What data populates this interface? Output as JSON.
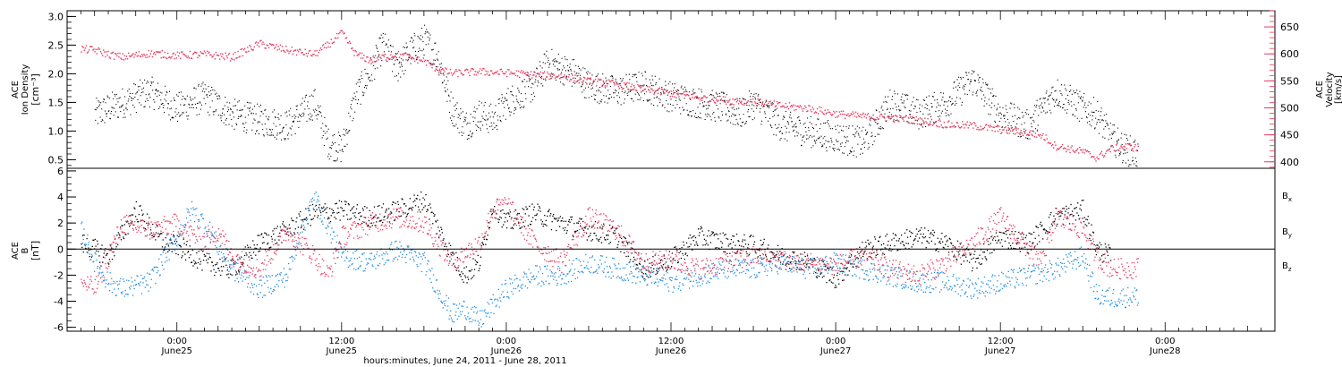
{
  "chart_data": [
    {
      "type": "scatter",
      "panel": "top",
      "ylabel_left": [
        "ACE",
        "Ion Density",
        "[cm⁻³]"
      ],
      "ylabel_right": [
        "ACE",
        "Velocity",
        "[km/s]"
      ],
      "ylim_left": [
        0.35,
        3.1
      ],
      "ylim_right": [
        388,
        680
      ],
      "yticks_left": [
        "0.5",
        "1.0",
        "1.5",
        "2.0",
        "2.5",
        "3.0"
      ],
      "yticks_right": [
        "400",
        "450",
        "500",
        "550",
        "600",
        "650"
      ],
      "series": [
        {
          "axis": "left",
          "color": "#000000",
          "points": [
            [
              -6,
              1.3
            ],
            [
              -4,
              1.5
            ],
            [
              -2,
              1.7
            ],
            [
              0,
              1.4
            ],
            [
              2,
              1.6
            ],
            [
              4,
              1.3
            ],
            [
              6,
              1.2
            ],
            [
              8,
              1.1
            ],
            [
              10,
              1.5
            ],
            [
              11,
              0.8
            ],
            [
              12,
              0.7
            ],
            [
              13,
              1.6
            ],
            [
              14,
              2.0
            ],
            [
              15,
              2.5
            ],
            [
              16,
              2.1
            ],
            [
              17,
              2.4
            ],
            [
              18,
              2.6
            ],
            [
              19,
              2.3
            ],
            [
              20,
              1.4
            ],
            [
              21,
              1.1
            ],
            [
              22,
              1.3
            ],
            [
              23,
              1.2
            ],
            [
              24,
              1.5
            ],
            [
              26,
              1.8
            ],
            [
              27,
              2.2
            ],
            [
              28,
              2.1
            ],
            [
              29,
              2.0
            ],
            [
              30,
              1.8
            ],
            [
              32,
              1.7
            ],
            [
              34,
              1.8
            ],
            [
              36,
              1.6
            ],
            [
              38,
              1.5
            ],
            [
              40,
              1.4
            ],
            [
              41,
              1.3
            ],
            [
              42,
              1.5
            ],
            [
              44,
              1.1
            ],
            [
              46,
              1.0
            ],
            [
              48,
              0.9
            ],
            [
              50,
              0.8
            ],
            [
              52,
              1.5
            ],
            [
              54,
              1.3
            ],
            [
              56,
              1.5
            ],
            [
              58,
              1.9
            ],
            [
              60,
              1.3
            ],
            [
              62,
              1.1
            ],
            [
              64,
              1.7
            ],
            [
              66,
              1.4
            ],
            [
              67,
              1.3
            ],
            [
              68,
              0.9
            ],
            [
              69,
              0.7
            ],
            [
              70,
              0.6
            ]
          ]
        },
        {
          "axis": "right",
          "color": "#e8385e",
          "points": [
            [
              -7,
              610
            ],
            [
              -6,
              608
            ],
            [
              -5,
              600
            ],
            [
              -4,
              595
            ],
            [
              -2,
              602
            ],
            [
              0,
              598
            ],
            [
              2,
              600
            ],
            [
              4,
              595
            ],
            [
              6,
              620
            ],
            [
              8,
              608
            ],
            [
              10,
              600
            ],
            [
              11,
              618
            ],
            [
              12,
              640
            ],
            [
              13,
              600
            ],
            [
              14,
              590
            ],
            [
              16,
              600
            ],
            [
              18,
              588
            ],
            [
              19,
              572
            ],
            [
              20,
              565
            ],
            [
              22,
              568
            ],
            [
              24,
              566
            ],
            [
              26,
              562
            ],
            [
              28,
              560
            ],
            [
              30,
              550
            ],
            [
              32,
              545
            ],
            [
              34,
              535
            ],
            [
              36,
              528
            ],
            [
              38,
              520
            ],
            [
              40,
              515
            ],
            [
              42,
              512
            ],
            [
              44,
              505
            ],
            [
              46,
              500
            ],
            [
              48,
              490
            ],
            [
              50,
              485
            ],
            [
              52,
              482
            ],
            [
              54,
              478
            ],
            [
              56,
              470
            ],
            [
              58,
              468
            ],
            [
              60,
              460
            ],
            [
              62,
              455
            ],
            [
              63,
              450
            ],
            [
              64,
              430
            ],
            [
              66,
              420
            ],
            [
              67,
              408
            ],
            [
              68,
              425
            ],
            [
              69,
              430
            ],
            [
              70,
              426
            ]
          ]
        }
      ]
    },
    {
      "type": "scatter",
      "panel": "bottom",
      "ylabel": [
        "ACE",
        "B",
        "[nT]"
      ],
      "ylim": [
        -6.3,
        6.2
      ],
      "yticks": [
        "-6",
        "-4",
        "-2",
        "0",
        "2",
        "4",
        "6"
      ],
      "legend": [
        {
          "name": "Bx",
          "color": "#000000"
        },
        {
          "name": "By",
          "color": "#1f8ce0"
        },
        {
          "name": "Bz",
          "color": "#e8385e"
        }
      ],
      "series": [
        {
          "name": "Bx",
          "color": "#000000",
          "points": [
            [
              -7,
              0.5
            ],
            [
              -5,
              -0.5
            ],
            [
              -3,
              3.0
            ],
            [
              -1,
              0.5
            ],
            [
              0,
              0.3
            ],
            [
              2,
              -1.0
            ],
            [
              4,
              -1.5
            ],
            [
              6,
              0.5
            ],
            [
              8,
              1.5
            ],
            [
              10,
              2.8
            ],
            [
              12,
              3.0
            ],
            [
              14,
              2.5
            ],
            [
              16,
              3.0
            ],
            [
              18,
              3.8
            ],
            [
              20,
              -0.5
            ],
            [
              21,
              -2.0
            ],
            [
              22,
              -1.0
            ],
            [
              23,
              3.5
            ],
            [
              24,
              2.0
            ],
            [
              26,
              2.8
            ],
            [
              28,
              2.0
            ],
            [
              30,
              1.5
            ],
            [
              32,
              1.0
            ],
            [
              34,
              -1.5
            ],
            [
              36,
              -0.8
            ],
            [
              38,
              1.0
            ],
            [
              40,
              0.5
            ],
            [
              42,
              0.3
            ],
            [
              44,
              -0.5
            ],
            [
              46,
              -1.0
            ],
            [
              48,
              -2.2
            ],
            [
              50,
              0.0
            ],
            [
              52,
              0.5
            ],
            [
              54,
              1.0
            ],
            [
              56,
              0.5
            ],
            [
              58,
              -1.0
            ],
            [
              60,
              1.0
            ],
            [
              62,
              0.5
            ],
            [
              64,
              2.5
            ],
            [
              66,
              3.0
            ],
            [
              67,
              0.0
            ],
            [
              68,
              -0.5
            ]
          ]
        },
        {
          "name": "By",
          "color": "#1f8ce0",
          "points": [
            [
              -7,
              1.5
            ],
            [
              -6,
              -1.0
            ],
            [
              -5,
              -2.5
            ],
            [
              -4,
              -3.0
            ],
            [
              -2,
              -2.5
            ],
            [
              0,
              1.0
            ],
            [
              1,
              3.0
            ],
            [
              2,
              2.0
            ],
            [
              4,
              -1.5
            ],
            [
              6,
              -3.0
            ],
            [
              8,
              -2.0
            ],
            [
              9,
              1.5
            ],
            [
              10,
              4.0
            ],
            [
              12,
              -0.5
            ],
            [
              14,
              -1.0
            ],
            [
              16,
              0.0
            ],
            [
              18,
              -1.0
            ],
            [
              19,
              -3.0
            ],
            [
              20,
              -5.0
            ],
            [
              21,
              -4.5
            ],
            [
              22,
              -5.5
            ],
            [
              24,
              -3.0
            ],
            [
              26,
              -2.0
            ],
            [
              28,
              -2.0
            ],
            [
              30,
              -1.0
            ],
            [
              32,
              -1.5
            ],
            [
              34,
              -2.0
            ],
            [
              36,
              -2.5
            ],
            [
              38,
              -2.0
            ],
            [
              40,
              -1.5
            ],
            [
              42,
              -1.5
            ],
            [
              44,
              -1.0
            ],
            [
              46,
              -1.5
            ],
            [
              48,
              -1.0
            ],
            [
              50,
              -1.5
            ],
            [
              52,
              -2.0
            ],
            [
              54,
              -2.5
            ],
            [
              56,
              -2.5
            ],
            [
              58,
              -3.0
            ],
            [
              60,
              -2.5
            ],
            [
              62,
              -2.0
            ],
            [
              64,
              -1.5
            ],
            [
              66,
              -0.5
            ],
            [
              67,
              -3.5
            ],
            [
              68,
              -3.7
            ],
            [
              70,
              -3.6
            ]
          ]
        },
        {
          "name": "Bz",
          "color": "#e8385e",
          "points": [
            [
              -7,
              -2.5
            ],
            [
              -6,
              -3.0
            ],
            [
              -4,
              2.0
            ],
            [
              -2,
              1.5
            ],
            [
              0,
              2.0
            ],
            [
              2,
              0.5
            ],
            [
              3,
              1.5
            ],
            [
              4,
              -0.5
            ],
            [
              6,
              -1.5
            ],
            [
              8,
              1.5
            ],
            [
              10,
              -0.5
            ],
            [
              11,
              -2.0
            ],
            [
              12,
              1.0
            ],
            [
              14,
              2.0
            ],
            [
              16,
              2.5
            ],
            [
              18,
              2.0
            ],
            [
              20,
              -1.0
            ],
            [
              22,
              0.5
            ],
            [
              23,
              3.0
            ],
            [
              24,
              3.5
            ],
            [
              25,
              2.0
            ],
            [
              26,
              0.5
            ],
            [
              28,
              -1.0
            ],
            [
              30,
              2.5
            ],
            [
              32,
              1.5
            ],
            [
              34,
              -1.0
            ],
            [
              36,
              -0.8
            ],
            [
              38,
              -1.5
            ],
            [
              40,
              -1.0
            ],
            [
              42,
              -0.5
            ],
            [
              44,
              -0.8
            ],
            [
              46,
              -1.0
            ],
            [
              48,
              -1.2
            ],
            [
              50,
              -0.5
            ],
            [
              52,
              -1.5
            ],
            [
              54,
              -2.0
            ],
            [
              56,
              -1.0
            ],
            [
              58,
              0.5
            ],
            [
              60,
              2.5
            ],
            [
              62,
              0.0
            ],
            [
              63,
              -1.0
            ],
            [
              64,
              2.5
            ],
            [
              66,
              1.5
            ],
            [
              67,
              -0.5
            ],
            [
              68,
              -1.5
            ],
            [
              70,
              -1.4
            ]
          ]
        }
      ]
    }
  ],
  "xaxis": {
    "xlim_hours": [
      -8,
      80
    ],
    "ticks": [
      {
        "h": 0,
        "line1": "0:00",
        "line2": "June25"
      },
      {
        "h": 12,
        "line1": "12:00",
        "line2": "June25"
      },
      {
        "h": 24,
        "line1": "0:00",
        "line2": "June26"
      },
      {
        "h": 36,
        "line1": "12:00",
        "line2": "June26"
      },
      {
        "h": 48,
        "line1": "0:00",
        "line2": "June27"
      },
      {
        "h": 60,
        "line1": "12:00",
        "line2": "June27"
      },
      {
        "h": 72,
        "line1": "0:00",
        "line2": "June28"
      }
    ],
    "label": "hours:minutes, June 24, 2011 - June 28, 2011"
  }
}
